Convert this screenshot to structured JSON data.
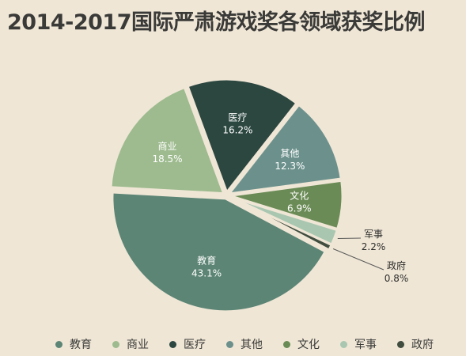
{
  "chart_data": {
    "type": "pie",
    "title": "2014-2017国际严肃游戏奖各领域获奖比例",
    "legend_position": "bottom",
    "slices": [
      {
        "label": "教育",
        "value": 43.1,
        "value_label": "43.1%",
        "color": "#5c8575"
      },
      {
        "label": "商业",
        "value": 18.5,
        "value_label": "18.5%",
        "color": "#9dbb8e"
      },
      {
        "label": "医疗",
        "value": 16.2,
        "value_label": "16.2%",
        "color": "#2c4740"
      },
      {
        "label": "其他",
        "value": 12.3,
        "value_label": "12.3%",
        "color": "#6c918c"
      },
      {
        "label": "文化",
        "value": 6.9,
        "value_label": "6.9%",
        "color": "#6a8b55"
      },
      {
        "label": "军事",
        "value": 2.2,
        "value_label": "2.2%",
        "color": "#a9c7b0"
      },
      {
        "label": "政府",
        "value": 0.8,
        "value_label": "0.8%",
        "color": "#404d3f"
      }
    ]
  }
}
